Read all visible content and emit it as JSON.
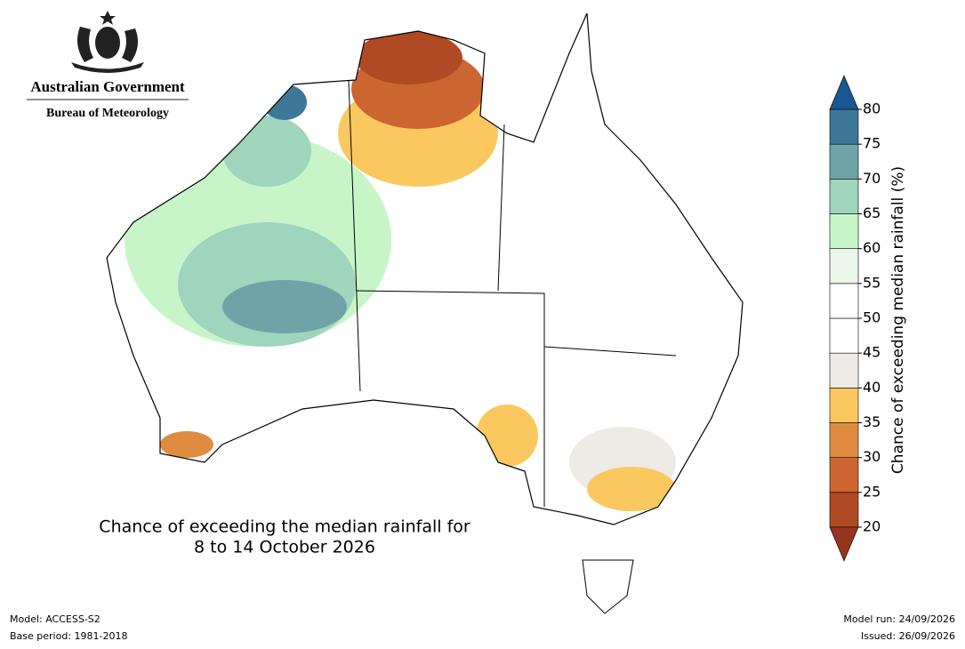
{
  "header": {
    "title": "Australian Government",
    "subtitle": "Bureau of Meteorology"
  },
  "map": {
    "title_lines": [
      "Chance of exceeding the median rainfall for",
      "8 to 14 October 2026"
    ]
  },
  "colorbar": {
    "label": "Chance of exceeding median rainfall (%)",
    "ticks": [
      20,
      25,
      30,
      35,
      40,
      45,
      50,
      55,
      60,
      65,
      70,
      75,
      80
    ],
    "colors": [
      "#b04a25",
      "#cc6530",
      "#e08c40",
      "#fbc860",
      "#eeeae6",
      "#ffffff",
      "#ffffff",
      "#eaf6ea",
      "#c8f5c8",
      "#9fd4bd",
      "#6fa3a8",
      "#3e7898"
    ],
    "under_color": "#953520",
    "over_color": "#1a5690"
  },
  "footer": {
    "left": [
      "Model: ACCESS-S2",
      "Base period: 1981-2018"
    ],
    "right": [
      "Model run: 24/09/2026",
      "Issued: 26/09/2026"
    ]
  }
}
